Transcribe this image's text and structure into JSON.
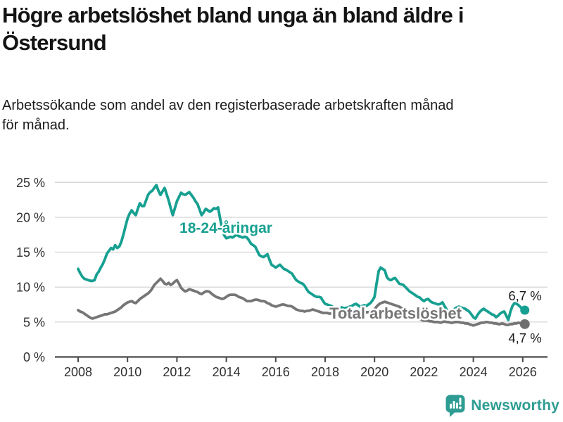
{
  "header": {
    "title": "Högre arbetslöshet bland unga än bland äldre i Östersund",
    "subtitle": "Arbetssökande som andel av den registerbaserade arbetskraften månad för månad."
  },
  "branding": {
    "logo_text": "Newsworthy",
    "logo_icon": "bar-chart-speech-bubble-icon",
    "brand_color": "#2E9C92"
  },
  "chart_data": {
    "type": "line",
    "unit": "%",
    "grid": "horizontal",
    "x_axis": {
      "start_year": 2008,
      "points_per_year": 12,
      "tick_start_year": 2008,
      "tick_step_years": 2,
      "tick_labels": [
        "2008",
        "2010",
        "2012",
        "2014",
        "2016",
        "2018",
        "2020",
        "2022",
        "2024",
        "2026"
      ]
    },
    "y_axis": {
      "min": 0,
      "max": 25,
      "tick_step": 5,
      "tick_labels": [
        "0 %",
        "5 %",
        "10 %",
        "15 %",
        "20 %",
        "25 %"
      ]
    },
    "series": [
      {
        "name": "18-24-åringar",
        "inline_label": "18-24-åringar",
        "end_label": "6,7 %",
        "end_value": 6.7,
        "color": "#17A091",
        "values": [
          12.6,
          12.0,
          11.5,
          11.2,
          11.1,
          11.0,
          10.9,
          10.9,
          11.0,
          11.8,
          12.2,
          12.8,
          13.3,
          14.0,
          14.8,
          15.2,
          15.6,
          15.4,
          16.0,
          15.6,
          15.8,
          16.5,
          17.5,
          18.7,
          19.8,
          20.5,
          21.0,
          20.6,
          20.3,
          21.2,
          22.0,
          21.6,
          21.6,
          22.4,
          23.2,
          23.6,
          23.8,
          24.2,
          24.6,
          23.8,
          23.2,
          23.7,
          24.2,
          23.3,
          22.4,
          21.3,
          20.3,
          21.3,
          22.3,
          22.9,
          23.5,
          23.3,
          23.2,
          23.4,
          23.6,
          23.2,
          22.8,
          22.3,
          21.9,
          21.1,
          20.3,
          20.7,
          21.2,
          21.0,
          20.8,
          21.0,
          21.3,
          21.2,
          21.4,
          19.8,
          18.3,
          17.4,
          17.0,
          17.1,
          17.2,
          17.1,
          17.3,
          17.5,
          17.3,
          17.2,
          17.1,
          17.2,
          17.1,
          16.7,
          16.2,
          16.0,
          15.8,
          15.2,
          14.6,
          14.4,
          14.3,
          14.5,
          14.7,
          13.9,
          13.2,
          13.0,
          12.8,
          13.0,
          13.2,
          12.9,
          12.6,
          12.5,
          12.3,
          12.1,
          11.9,
          11.4,
          11.0,
          10.8,
          10.6,
          10.5,
          10.2,
          9.7,
          9.3,
          9.1,
          8.9,
          8.7,
          8.6,
          8.6,
          8.5,
          8.0,
          7.6,
          7.5,
          7.4,
          7.3,
          7.1,
          7.0,
          6.9,
          7.0,
          7.1,
          7.0,
          7.0,
          7.1,
          7.2,
          7.3,
          7.5,
          7.6,
          7.4,
          7.2,
          7.3,
          7.4,
          7.3,
          7.5,
          7.7,
          8.1,
          8.6,
          10.5,
          12.3,
          12.8,
          12.6,
          12.4,
          11.4,
          11.1,
          11.0,
          11.2,
          11.3,
          10.9,
          10.5,
          10.4,
          10.3,
          10.0,
          9.7,
          9.4,
          9.2,
          9.0,
          8.8,
          8.6,
          8.5,
          8.2,
          8.0,
          8.2,
          8.3,
          8.0,
          7.8,
          7.7,
          7.6,
          7.5,
          7.6,
          7.8,
          7.3,
          6.8,
          6.4,
          6.1,
          6.5,
          6.9,
          7.1,
          7.2,
          7.1,
          7.0,
          6.9,
          6.7,
          6.5,
          6.1,
          5.7,
          5.5,
          6.0,
          6.4,
          6.7,
          6.9,
          6.7,
          6.5,
          6.3,
          6.1,
          6.0,
          5.7,
          5.9,
          6.2,
          6.4,
          6.5,
          5.9,
          5.3,
          6.5,
          7.3,
          7.7,
          7.6,
          7.4,
          7.1,
          6.9,
          6.7
        ]
      },
      {
        "name": "Total arbetslöshet",
        "inline_label": "Total arbetslöshet",
        "end_label": "4,7 %",
        "end_value": 4.7,
        "color": "#767677",
        "values": [
          6.7,
          6.5,
          6.4,
          6.2,
          6.0,
          5.8,
          5.6,
          5.5,
          5.6,
          5.7,
          5.8,
          5.9,
          6.0,
          6.1,
          6.1,
          6.2,
          6.3,
          6.4,
          6.5,
          6.7,
          6.9,
          7.1,
          7.4,
          7.6,
          7.8,
          7.9,
          8.0,
          7.8,
          7.7,
          8.0,
          8.3,
          8.5,
          8.7,
          8.9,
          9.1,
          9.4,
          9.8,
          10.3,
          10.6,
          10.9,
          11.2,
          10.9,
          10.5,
          10.4,
          10.6,
          10.3,
          10.5,
          10.8,
          11.0,
          10.5,
          9.9,
          9.6,
          9.4,
          9.5,
          9.7,
          9.6,
          9.5,
          9.4,
          9.3,
          9.1,
          9.0,
          9.2,
          9.4,
          9.4,
          9.3,
          9.0,
          8.8,
          8.6,
          8.5,
          8.4,
          8.3,
          8.4,
          8.6,
          8.8,
          8.9,
          8.9,
          8.9,
          8.8,
          8.6,
          8.5,
          8.4,
          8.2,
          8.0,
          8.0,
          8.0,
          8.1,
          8.2,
          8.2,
          8.1,
          8.0,
          8.0,
          7.9,
          7.7,
          7.6,
          7.4,
          7.3,
          7.2,
          7.3,
          7.4,
          7.5,
          7.5,
          7.4,
          7.3,
          7.3,
          7.2,
          7.0,
          6.8,
          6.7,
          6.6,
          6.6,
          6.5,
          6.6,
          6.6,
          6.7,
          6.8,
          6.7,
          6.6,
          6.5,
          6.4,
          6.3,
          6.3,
          6.3,
          6.2,
          6.2,
          6.1,
          6.1,
          6.1,
          6.1,
          6.2,
          6.2,
          6.2,
          6.2,
          6.2,
          6.3,
          6.3,
          6.3,
          6.3,
          6.3,
          6.3,
          6.3,
          6.4,
          6.4,
          6.5,
          6.6,
          6.8,
          7.2,
          7.5,
          7.7,
          7.8,
          7.9,
          7.8,
          7.7,
          7.6,
          7.5,
          7.4,
          7.3,
          7.2,
          7.0,
          6.8,
          6.6,
          6.4,
          6.2,
          6.0,
          5.8,
          5.7,
          5.5,
          5.4,
          5.3,
          5.2,
          5.2,
          5.2,
          5.1,
          5.1,
          5.0,
          5.0,
          5.0,
          4.9,
          5.0,
          5.1,
          5.0,
          5.0,
          4.9,
          4.9,
          5.0,
          5.0,
          5.0,
          4.9,
          4.9,
          4.8,
          4.8,
          4.7,
          4.6,
          4.5,
          4.6,
          4.7,
          4.8,
          4.9,
          4.9,
          5.0,
          5.0,
          4.9,
          4.9,
          4.8,
          4.8,
          4.7,
          4.7,
          4.8,
          4.7,
          4.6,
          4.6,
          4.7,
          4.7,
          4.8,
          4.8,
          4.9,
          4.8,
          4.8,
          4.7
        ]
      }
    ]
  }
}
